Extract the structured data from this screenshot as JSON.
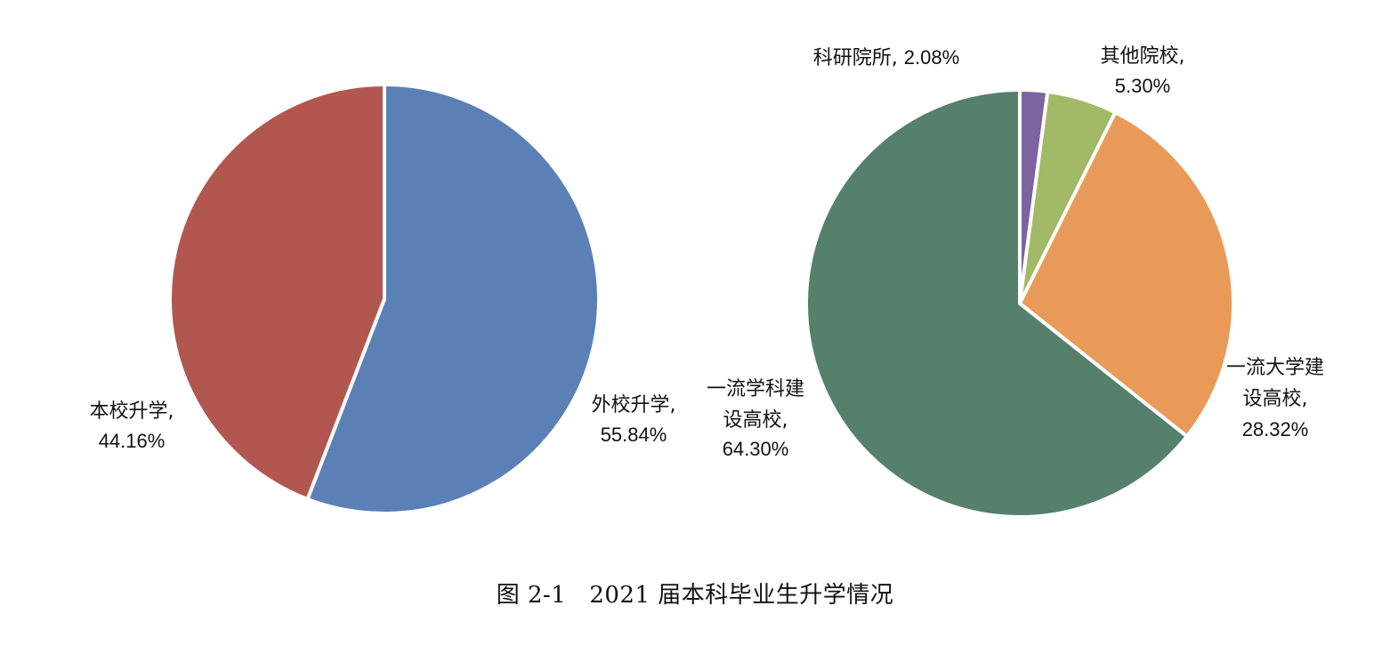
{
  "chart_data": [
    {
      "type": "pie",
      "start_angle_deg": 0,
      "direction": "clockwise",
      "colors": [
        "#5A80B6",
        "#B2574F"
      ],
      "slices": [
        {
          "label": "外校升学",
          "value": 55.84,
          "value_text": "55.84%"
        },
        {
          "label": "本校升学",
          "value": 44.16,
          "value_text": "44.16%"
        }
      ]
    },
    {
      "type": "pie",
      "start_angle_deg": 0,
      "direction": "clockwise",
      "colors": [
        "#7B64A0",
        "#A2BA68",
        "#EA9A58",
        "#55806C"
      ],
      "slices": [
        {
          "label": "科研院所",
          "value": 2.08,
          "value_text": "2.08%"
        },
        {
          "label": "其他院校",
          "value": 5.3,
          "value_text": "5.30%"
        },
        {
          "label": "一流大学建设高校",
          "value": 28.32,
          "value_text": "28.32%"
        },
        {
          "label": "一流学科建设高校",
          "value": 64.3,
          "value_text": "64.30%"
        }
      ]
    }
  ],
  "caption": {
    "figure_no": "图 2-1",
    "title": "2021 届本科毕业生升学情况"
  }
}
